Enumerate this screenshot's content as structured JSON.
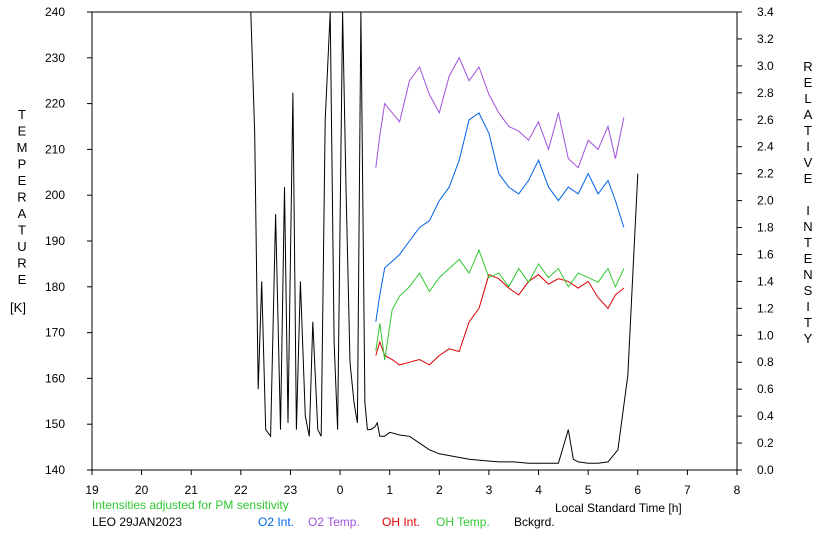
{
  "chart_data": {
    "type": "line",
    "left_axis_letters": [
      "T",
      "E",
      "M",
      "P",
      "E",
      "R",
      "A",
      "T",
      "U",
      "R",
      "E"
    ],
    "left_axis_unit": "[K]",
    "right_axis_letters": [
      "R",
      "E",
      "L",
      "A",
      "T",
      "I",
      "V",
      "E",
      "",
      "I",
      "N",
      "T",
      "E",
      "N",
      "S",
      "I",
      "T",
      "Y"
    ],
    "xlabel": "Local Standard Time [h]",
    "note": "Intensities adjusted for PM sensitivity",
    "station_date": "LEO 29JAN2023",
    "x_hours": [
      19,
      20,
      21,
      22,
      23,
      24,
      25,
      26,
      27,
      28,
      29,
      30,
      31,
      32
    ],
    "x_tick_labels": [
      "19",
      "20",
      "21",
      "22",
      "23",
      "0",
      "1",
      "2",
      "3",
      "4",
      "5",
      "6",
      "7",
      "8"
    ],
    "y_left": {
      "min": 140,
      "max": 240,
      "ticks": [
        140,
        150,
        160,
        170,
        180,
        190,
        200,
        210,
        220,
        230,
        240
      ]
    },
    "y_right": {
      "min": 0.0,
      "max": 3.4,
      "ticks": [
        "0.0",
        "0.2",
        "0.4",
        "0.6",
        "0.8",
        "1.0",
        "1.2",
        "1.4",
        "1.6",
        "1.8",
        "2.0",
        "2.2",
        "2.4",
        "2.6",
        "2.8",
        "3.0",
        "3.2",
        "3.4"
      ]
    },
    "legend": [
      {
        "label": "O2 Int.",
        "color": "#0064e6"
      },
      {
        "label": "O2 Temp.",
        "color": "#a050dc"
      },
      {
        "label": "OH Int.",
        "color": "#dc0000"
      },
      {
        "label": "OH Temp.",
        "color": "#32c832"
      },
      {
        "label": "Bckgrd.",
        "color": "#000000"
      }
    ],
    "series": [
      {
        "name": "Bckgrd.",
        "axis": "right",
        "color": "#000000",
        "x": [
          22.2,
          22.28,
          22.35,
          22.42,
          22.5,
          22.6,
          22.7,
          22.8,
          22.88,
          22.95,
          23.05,
          23.12,
          23.2,
          23.3,
          23.38,
          23.45,
          23.55,
          23.62,
          23.7,
          23.8,
          23.88,
          23.95,
          24.05,
          24.12,
          24.2,
          24.28,
          24.35,
          24.42,
          24.5,
          24.55,
          24.62,
          24.7,
          24.75,
          24.8,
          24.9,
          25.0,
          25.2,
          25.4,
          25.6,
          25.8,
          26.0,
          26.3,
          26.6,
          26.9,
          27.2,
          27.5,
          27.8,
          28.1,
          28.4,
          28.6,
          28.7,
          28.8,
          29.0,
          29.2,
          29.4,
          29.6,
          29.8,
          30.0
        ],
        "values": [
          3.4,
          2.5,
          0.6,
          1.4,
          0.3,
          0.25,
          1.9,
          0.3,
          2.1,
          0.35,
          2.8,
          0.3,
          1.4,
          0.4,
          0.25,
          1.1,
          0.3,
          0.25,
          2.6,
          3.4,
          0.95,
          0.3,
          3.4,
          2.1,
          0.8,
          0.5,
          0.35,
          3.4,
          0.5,
          0.3,
          0.3,
          0.32,
          0.35,
          0.25,
          0.25,
          0.28,
          0.26,
          0.25,
          0.2,
          0.15,
          0.12,
          0.1,
          0.08,
          0.07,
          0.06,
          0.06,
          0.05,
          0.05,
          0.05,
          0.3,
          0.08,
          0.06,
          0.05,
          0.05,
          0.06,
          0.15,
          0.7,
          2.2
        ]
      },
      {
        "name": "O2 Int.",
        "axis": "right",
        "color": "#0064e6",
        "x": [
          24.72,
          24.8,
          24.9,
          25.05,
          25.2,
          25.4,
          25.6,
          25.8,
          26.0,
          26.2,
          26.4,
          26.6,
          26.8,
          27.0,
          27.2,
          27.4,
          27.6,
          27.8,
          28.0,
          28.2,
          28.4,
          28.6,
          28.8,
          29.0,
          29.2,
          29.4,
          29.55,
          29.72
        ],
        "values": [
          1.1,
          1.3,
          1.5,
          1.55,
          1.6,
          1.7,
          1.8,
          1.85,
          2.0,
          2.1,
          2.3,
          2.6,
          2.65,
          2.5,
          2.2,
          2.1,
          2.05,
          2.15,
          2.3,
          2.1,
          2.0,
          2.1,
          2.05,
          2.2,
          2.05,
          2.15,
          2.0,
          1.8
        ]
      },
      {
        "name": "O2 Temp.",
        "axis": "left",
        "color": "#a050dc",
        "x": [
          24.72,
          24.8,
          24.9,
          25.05,
          25.2,
          25.4,
          25.6,
          25.8,
          26.0,
          26.2,
          26.4,
          26.6,
          26.8,
          27.0,
          27.2,
          27.4,
          27.6,
          27.8,
          28.0,
          28.2,
          28.4,
          28.6,
          28.8,
          29.0,
          29.2,
          29.4,
          29.55,
          29.72
        ],
        "values": [
          206,
          213,
          220,
          218,
          216,
          225,
          228,
          222,
          218,
          226,
          230,
          225,
          228,
          222,
          218,
          215,
          214,
          212,
          216,
          210,
          218,
          208,
          206,
          212,
          210,
          215,
          208,
          217
        ]
      },
      {
        "name": "OH Int.",
        "axis": "right",
        "color": "#dc0000",
        "x": [
          24.72,
          24.8,
          24.9,
          25.05,
          25.2,
          25.4,
          25.6,
          25.8,
          26.0,
          26.2,
          26.4,
          26.6,
          26.8,
          27.0,
          27.2,
          27.4,
          27.6,
          27.8,
          28.0,
          28.2,
          28.4,
          28.6,
          28.8,
          29.0,
          29.2,
          29.4,
          29.55,
          29.72
        ],
        "values": [
          0.85,
          0.95,
          0.85,
          0.82,
          0.78,
          0.8,
          0.82,
          0.78,
          0.85,
          0.9,
          0.88,
          1.1,
          1.2,
          1.45,
          1.42,
          1.35,
          1.3,
          1.4,
          1.45,
          1.38,
          1.42,
          1.4,
          1.35,
          1.4,
          1.28,
          1.2,
          1.3,
          1.35
        ]
      },
      {
        "name": "OH Temp.",
        "axis": "left",
        "color": "#32c832",
        "x": [
          24.72,
          24.8,
          24.9,
          25.05,
          25.2,
          25.4,
          25.6,
          25.8,
          26.0,
          26.2,
          26.4,
          26.6,
          26.8,
          27.0,
          27.2,
          27.4,
          27.6,
          27.8,
          28.0,
          28.2,
          28.4,
          28.6,
          28.8,
          29.0,
          29.2,
          29.4,
          29.55,
          29.72
        ],
        "values": [
          166,
          172,
          164,
          175,
          178,
          180,
          183,
          179,
          182,
          184,
          186,
          183,
          188,
          182,
          183,
          180,
          184,
          181,
          185,
          182,
          184,
          180,
          183,
          182,
          181,
          184,
          180,
          184
        ]
      }
    ]
  }
}
